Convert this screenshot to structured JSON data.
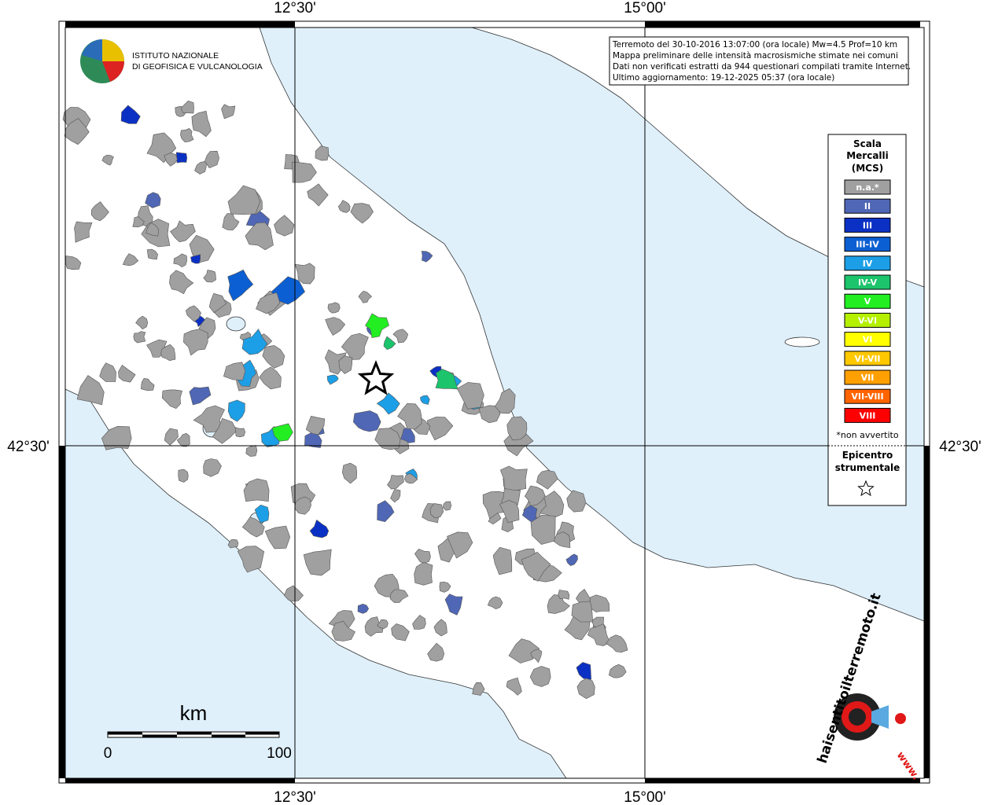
{
  "header": {
    "institute": [
      "ISTITUTO NAZIONALE",
      "DI GEOFISICA E VULCANOLOGIA"
    ]
  },
  "info": [
    "Terremoto del 30-10-2016 13:07:00 (ora locale) Mw=4.5 Prof=10 km",
    "Mappa preliminare delle intensità macrosismiche stimate nei comuni",
    "Dati non verificati estratti da 944 questionari compilati tramite Internet.",
    "Ultimo aggiornamento: 19-12-2025 05:37 (ora locale)"
  ],
  "grid": {
    "lon_labels": [
      "12°30'",
      "15°00'"
    ],
    "lat_labels": [
      "42°30'"
    ]
  },
  "legend": {
    "title": [
      "Scala",
      "Mercalli",
      "(MCS)"
    ],
    "items": [
      {
        "label": "n.a.*",
        "color": "#a0a0a0"
      },
      {
        "label": "II",
        "color": "#4f67b5"
      },
      {
        "label": "III",
        "color": "#0b31c4"
      },
      {
        "label": "III-IV",
        "color": "#0c5fd2"
      },
      {
        "label": "IV",
        "color": "#1c9fe6"
      },
      {
        "label": "IV-V",
        "color": "#1cc46c"
      },
      {
        "label": "V",
        "color": "#22ee22"
      },
      {
        "label": "V-VI",
        "color": "#b4f000"
      },
      {
        "label": "VI",
        "color": "#ffff00"
      },
      {
        "label": "VI-VII",
        "color": "#ffc800"
      },
      {
        "label": "VII",
        "color": "#ffa000"
      },
      {
        "label": "VII-VIII",
        "color": "#ff6400"
      },
      {
        "label": "VIII",
        "color": "#ff0000"
      }
    ],
    "note": "*non avvertito",
    "epicenter": [
      "Epicentro",
      "strumentale"
    ]
  },
  "scale_bar": {
    "unit": "km",
    "labels": [
      "0",
      "100"
    ]
  },
  "logo": {
    "text": "haisentitoilterremoto.it",
    "www": "www."
  }
}
